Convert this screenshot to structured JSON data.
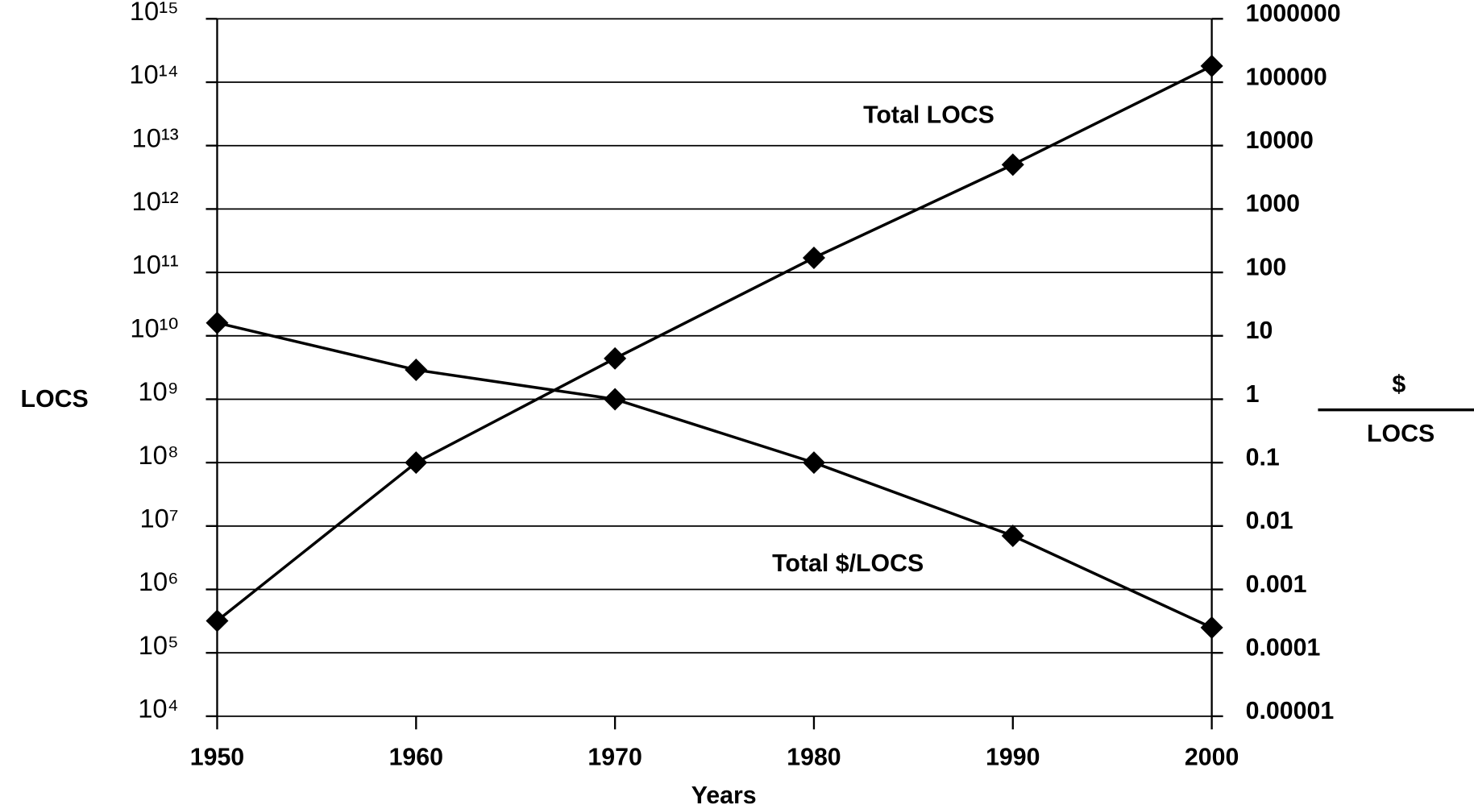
{
  "chart_data": {
    "type": "line",
    "ylabel": "LOCS",
    "y2label_top": "$",
    "y2label_bottom": "LOCS",
    "xlabel": "Years",
    "x": [
      1950,
      1960,
      1970,
      1980,
      1990,
      2000
    ],
    "xlim": [
      1950,
      2000
    ],
    "xticks": [
      1950,
      1960,
      1970,
      1980,
      1990,
      2000
    ],
    "ylog": true,
    "ylim": [
      10000,
      1000000000000000
    ],
    "yticks": [
      {
        "value": 1000000000000000,
        "label": "10¹⁵"
      },
      {
        "value": 100000000000000,
        "label": "10¹⁴"
      },
      {
        "value": 10000000000000,
        "label": "10¹³"
      },
      {
        "value": 1000000000000,
        "label": "10¹²"
      },
      {
        "value": 100000000000,
        "label": "10¹¹"
      },
      {
        "value": 10000000000,
        "label": "10¹⁰"
      },
      {
        "value": 1000000000,
        "label": "10⁹"
      },
      {
        "value": 100000000,
        "label": "10⁸"
      },
      {
        "value": 10000000,
        "label": "10⁷"
      },
      {
        "value": 1000000,
        "label": "10⁶"
      },
      {
        "value": 100000,
        "label": "10⁵"
      },
      {
        "value": 10000,
        "label": "10⁴"
      }
    ],
    "y2log": true,
    "y2lim": [
      1e-05,
      1000000
    ],
    "y2ticks": [
      1000000,
      100000,
      10000,
      1000,
      100,
      10,
      1,
      0.1,
      0.01,
      0.001,
      0.0001,
      1e-05
    ],
    "grid": true,
    "series": [
      {
        "name": "Total LOCS",
        "color": "#000000",
        "values": [
          320000,
          100000000,
          4400000000,
          170000000000,
          5000000000000,
          180000000000000
        ]
      },
      {
        "name": "Total $/LOCS",
        "color": "#000000",
        "axis": "y2",
        "values": [
          16,
          2.9,
          1,
          0.1,
          0.007,
          0.00025
        ]
      }
    ]
  }
}
